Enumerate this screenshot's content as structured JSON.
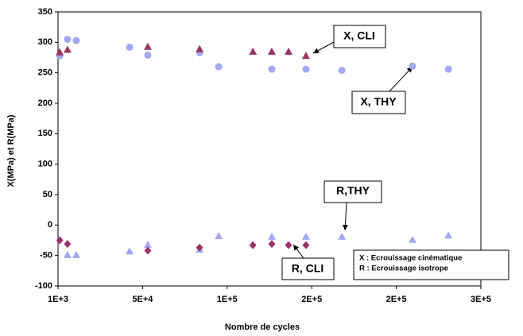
{
  "chart_data": {
    "type": "scatter",
    "xlabel": "Nombre de cycles",
    "ylabel": "X(MPa) et R(MPa)",
    "xlim": [
      1000,
      251000
    ],
    "xticks": [
      {
        "value": 1000,
        "label": "1E+3"
      },
      {
        "value": 51000,
        "label": "5E+4"
      },
      {
        "value": 101000,
        "label": "1E+5"
      },
      {
        "value": 151000,
        "label": "2E+5"
      },
      {
        "value": 201000,
        "label": "2E+5"
      },
      {
        "value": 251000,
        "label": "3E+5"
      }
    ],
    "ylim": [
      -100,
      350
    ],
    "yticks": [
      -100,
      -50,
      0,
      50,
      100,
      150,
      200,
      250,
      300,
      350
    ],
    "series": [
      {
        "name": "X, THY",
        "color": "#a3a8f0",
        "marker": "circle",
        "x": [
          2000,
          6600,
          11800,
          43300,
          54100,
          84700,
          96000,
          127400,
          147600,
          168800,
          210600,
          231800
        ],
        "values": [
          278,
          305,
          303,
          292,
          279,
          283,
          260,
          256,
          256,
          254,
          261,
          256
        ]
      },
      {
        "name": "X, CLI",
        "color": "#993366",
        "marker": "triangle",
        "x": [
          2000,
          6600,
          54100,
          84700,
          116200,
          127400,
          137300,
          147600
        ],
        "values": [
          284,
          288,
          293,
          289,
          285,
          285,
          285,
          278
        ]
      },
      {
        "name": "R,THY",
        "color": "#a3a8f0",
        "marker": "triangle",
        "x": [
          6600,
          11800,
          43300,
          54100,
          84700,
          96000,
          127400,
          147600,
          168800,
          210600,
          231800
        ],
        "values": [
          -49,
          -49,
          -43,
          -32,
          -40,
          -18,
          -19,
          -19,
          -19,
          -24,
          -17
        ]
      },
      {
        "name": "R, CLI",
        "color": "#993366",
        "marker": "diamond",
        "x": [
          2000,
          6600,
          54100,
          84700,
          116200,
          127400,
          137300,
          147600
        ],
        "values": [
          -25,
          -31,
          -42,
          -37,
          -33,
          -31,
          -33,
          -33
        ]
      }
    ],
    "notes": [
      "X : Ecrouissage cinématique",
      "R : Ecrouissage isotrope"
    ]
  }
}
